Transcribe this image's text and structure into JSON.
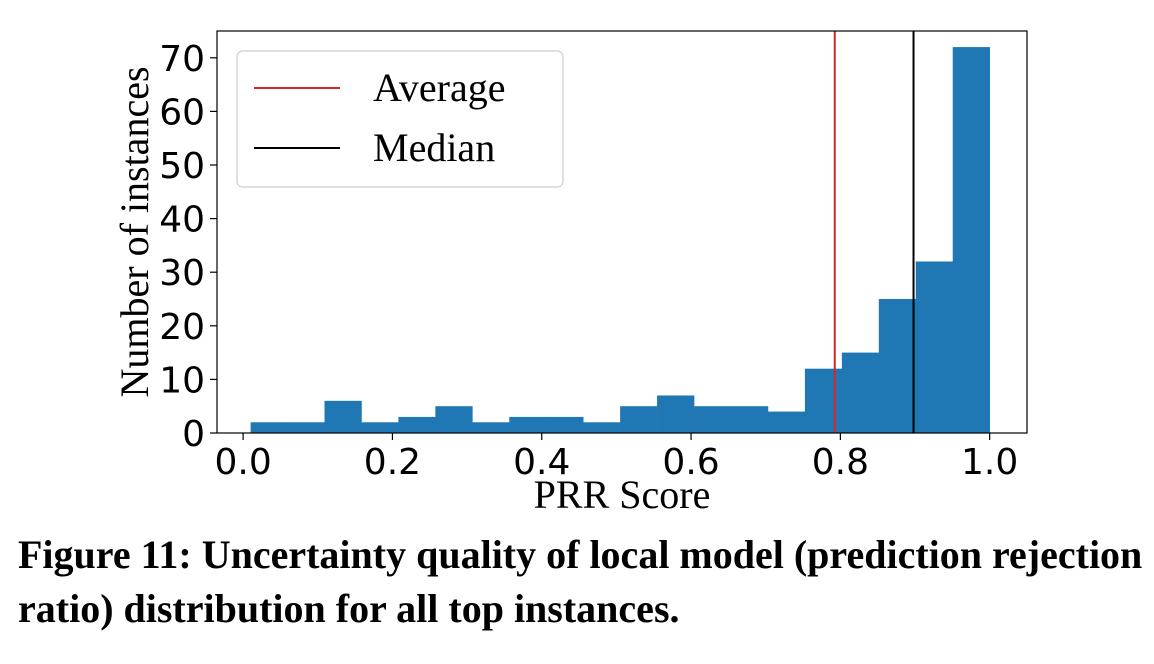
{
  "chart_data": {
    "type": "bar",
    "xlabel": "PRR Score",
    "ylabel": "Number of instances",
    "xlim": [
      -0.035,
      1.05
    ],
    "ylim": [
      0,
      75
    ],
    "xticks": [
      "0.0",
      "0.2",
      "0.4",
      "0.6",
      "0.8",
      "1.0"
    ],
    "yticks": [
      "0",
      "10",
      "20",
      "30",
      "40",
      "50",
      "60",
      "70"
    ],
    "bin_edges": [
      0.01,
      0.0595,
      0.109,
      0.1585,
      0.208,
      0.2575,
      0.307,
      0.3565,
      0.406,
      0.4555,
      0.505,
      0.5545,
      0.604,
      0.6535,
      0.703,
      0.7525,
      0.802,
      0.8515,
      0.901,
      0.9505,
      1.0
    ],
    "counts": [
      2,
      2,
      6,
      2,
      3,
      5,
      2,
      3,
      3,
      2,
      5,
      7,
      5,
      5,
      4,
      12,
      15,
      25,
      32,
      72
    ],
    "bar_color": "#1f77b4",
    "grid": false,
    "legend_position": "upper-left",
    "reference_lines": [
      {
        "name": "Average",
        "x": 0.7925,
        "color": "#d62728"
      },
      {
        "name": "Median",
        "x": 0.898,
        "color": "#000000"
      }
    ]
  },
  "caption": "Figure 11: Uncertainty quality of local model (prediction rejection ratio) distribution for all top instances."
}
